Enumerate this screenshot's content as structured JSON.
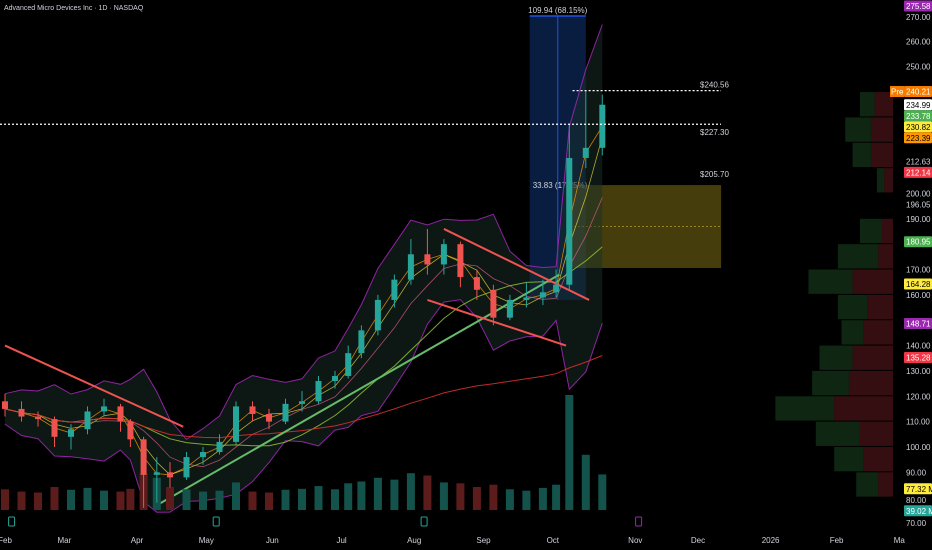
{
  "header": {
    "title": "Advanced Micro Devices Inc · 1D · NASDAQ"
  },
  "colors": {
    "up": "#26a69a",
    "down": "#ef5350",
    "background": "#000000",
    "band": "#9c27b0",
    "zone": "#9a8a1a",
    "measure": "#1e53e5"
  },
  "chart_data": {
    "type": "candlestick",
    "title": "Advanced Micro Devices Inc · 1D · NASDAQ",
    "ylim": [
      70,
      270
    ],
    "y_ticks": [
      270,
      260,
      250,
      200,
      190,
      170,
      160,
      140,
      130,
      120,
      110,
      100,
      90,
      80,
      70
    ],
    "x_ticks": [
      {
        "label": "Feb",
        "bar": 0
      },
      {
        "label": "Mar",
        "bar": 18
      },
      {
        "label": "Apr",
        "bar": 40
      },
      {
        "label": "May",
        "bar": 61
      },
      {
        "label": "Jun",
        "bar": 81
      },
      {
        "label": "Jul",
        "bar": 102
      },
      {
        "label": "Aug",
        "bar": 124
      },
      {
        "label": "Sep",
        "bar": 145
      },
      {
        "label": "Oct",
        "bar": 166
      },
      {
        "label": "Nov",
        "bar": 191
      },
      {
        "label": "Dec",
        "bar": 210
      },
      {
        "label": "2026",
        "bar": 232
      },
      {
        "label": "Feb",
        "bar": 252
      },
      {
        "label": "Ma",
        "bar": 271
      }
    ],
    "candles": [
      {
        "bar": 0,
        "o": 118,
        "h": 121,
        "l": 112,
        "c": 115,
        "v": 45
      },
      {
        "bar": 5,
        "o": 115,
        "h": 118,
        "l": 110,
        "c": 112,
        "v": 40
      },
      {
        "bar": 10,
        "o": 112,
        "h": 114,
        "l": 108,
        "c": 111,
        "v": 38
      },
      {
        "bar": 15,
        "o": 111,
        "h": 112,
        "l": 100,
        "c": 104,
        "v": 50
      },
      {
        "bar": 20,
        "o": 104,
        "h": 109,
        "l": 99,
        "c": 107,
        "v": 44
      },
      {
        "bar": 25,
        "o": 107,
        "h": 116,
        "l": 105,
        "c": 114,
        "v": 48
      },
      {
        "bar": 30,
        "o": 114,
        "h": 119,
        "l": 112,
        "c": 116,
        "v": 42
      },
      {
        "bar": 35,
        "o": 116,
        "h": 117,
        "l": 106,
        "c": 110,
        "v": 40
      },
      {
        "bar": 38,
        "o": 110,
        "h": 111,
        "l": 100,
        "c": 103,
        "v": 46
      },
      {
        "bar": 42,
        "o": 103,
        "h": 104,
        "l": 76,
        "c": 89,
        "v": 80
      },
      {
        "bar": 46,
        "o": 89,
        "h": 96,
        "l": 78,
        "c": 90,
        "v": 70
      },
      {
        "bar": 50,
        "o": 90,
        "h": 94,
        "l": 84,
        "c": 88,
        "v": 50
      },
      {
        "bar": 55,
        "o": 88,
        "h": 98,
        "l": 87,
        "c": 96,
        "v": 45
      },
      {
        "bar": 60,
        "o": 96,
        "h": 100,
        "l": 93,
        "c": 98,
        "v": 40
      },
      {
        "bar": 65,
        "o": 98,
        "h": 105,
        "l": 97,
        "c": 102,
        "v": 42
      },
      {
        "bar": 70,
        "o": 102,
        "h": 118,
        "l": 101,
        "c": 116,
        "v": 60
      },
      {
        "bar": 75,
        "o": 116,
        "h": 118,
        "l": 110,
        "c": 113,
        "v": 40
      },
      {
        "bar": 80,
        "o": 113,
        "h": 115,
        "l": 107,
        "c": 110,
        "v": 38
      },
      {
        "bar": 85,
        "o": 110,
        "h": 119,
        "l": 109,
        "c": 117,
        "v": 44
      },
      {
        "bar": 90,
        "o": 117,
        "h": 122,
        "l": 114,
        "c": 118,
        "v": 46
      },
      {
        "bar": 95,
        "o": 118,
        "h": 128,
        "l": 117,
        "c": 126,
        "v": 52
      },
      {
        "bar": 100,
        "o": 126,
        "h": 130,
        "l": 123,
        "c": 128,
        "v": 45
      },
      {
        "bar": 104,
        "o": 128,
        "h": 140,
        "l": 127,
        "c": 137,
        "v": 58
      },
      {
        "bar": 108,
        "o": 137,
        "h": 148,
        "l": 135,
        "c": 146,
        "v": 62
      },
      {
        "bar": 113,
        "o": 146,
        "h": 160,
        "l": 144,
        "c": 158,
        "v": 70
      },
      {
        "bar": 118,
        "o": 158,
        "h": 168,
        "l": 155,
        "c": 166,
        "v": 66
      },
      {
        "bar": 123,
        "o": 166,
        "h": 182,
        "l": 164,
        "c": 176,
        "v": 80
      },
      {
        "bar": 128,
        "o": 176,
        "h": 186,
        "l": 168,
        "c": 172,
        "v": 75
      },
      {
        "bar": 133,
        "o": 172,
        "h": 182,
        "l": 168,
        "c": 180,
        "v": 60
      },
      {
        "bar": 138,
        "o": 180,
        "h": 181,
        "l": 163,
        "c": 167,
        "v": 58
      },
      {
        "bar": 143,
        "o": 167,
        "h": 170,
        "l": 158,
        "c": 162,
        "v": 50
      },
      {
        "bar": 148,
        "o": 162,
        "h": 164,
        "l": 148,
        "c": 151,
        "v": 55
      },
      {
        "bar": 153,
        "o": 151,
        "h": 160,
        "l": 150,
        "c": 158,
        "v": 45
      },
      {
        "bar": 158,
        "o": 158,
        "h": 165,
        "l": 155,
        "c": 159,
        "v": 42
      },
      {
        "bar": 163,
        "o": 159,
        "h": 166,
        "l": 156,
        "c": 161,
        "v": 48
      },
      {
        "bar": 167,
        "o": 161,
        "h": 170,
        "l": 159,
        "c": 164,
        "v": 55
      },
      {
        "bar": 171,
        "o": 164,
        "h": 227,
        "l": 162,
        "c": 214,
        "v": 250
      },
      {
        "bar": 176,
        "o": 214,
        "h": 240.56,
        "l": 210,
        "c": 218,
        "v": 120
      },
      {
        "bar": 181,
        "o": 218,
        "h": 239,
        "l": 215,
        "c": 234.99,
        "v": 77.32
      }
    ],
    "trendlines": [
      {
        "color": "#ef5350",
        "from": {
          "bar": 0,
          "price": 140
        },
        "to": {
          "bar": 54,
          "price": 108
        }
      },
      {
        "color": "#66bb6a",
        "from": {
          "bar": 46,
          "price": 77
        },
        "to": {
          "bar": 168,
          "price": 168
        }
      },
      {
        "color": "#ef5350",
        "from": {
          "bar": 133,
          "price": 186
        },
        "to": {
          "bar": 177,
          "price": 158
        }
      },
      {
        "color": "#ef5350",
        "from": {
          "bar": 128,
          "price": 158
        },
        "to": {
          "bar": 170,
          "price": 140
        }
      }
    ],
    "measure": {
      "label_top": "109.94 (68.15%)",
      "label_mid": "33.83 (17.25%)",
      "from_bar": 159,
      "to_bar": 176,
      "low": 158,
      "high": 270,
      "mid_price": 203
    },
    "zone": {
      "from_bar": 170,
      "to_bar": 217,
      "low": 170.6,
      "high": 203.3
    },
    "price_lines": [
      {
        "price": 240.56,
        "label": "$240.56"
      },
      {
        "price": 227.3,
        "label": "$227.30"
      }
    ],
    "zone_label": {
      "price": 205.7,
      "label": "$205.70"
    },
    "price_tags": [
      {
        "price": 275.58,
        "label": "275.58",
        "bg": "#9c27b0",
        "fg": "#ffffff"
      },
      {
        "price": 240.21,
        "label": "240.21",
        "bg": "#f57c00",
        "fg": "#ffffff",
        "prefix": "Pre"
      },
      {
        "price": 234.99,
        "label": "234.99",
        "bg": "#ffffff",
        "fg": "#000000"
      },
      {
        "price": 233.78,
        "label": "233.78",
        "bg": "#4caf50",
        "fg": "#ffffff"
      },
      {
        "price": 230.82,
        "label": "230.82",
        "bg": "#ffeb3b",
        "fg": "#000000"
      },
      {
        "price": 223.39,
        "label": "223.39",
        "bg": "#ff9800",
        "fg": "#000000"
      },
      {
        "price": 212.63,
        "label": "212.63",
        "bg": "",
        "fg": "#d1d4dc"
      },
      {
        "price": 212.14,
        "label": "212.14",
        "bg": "#f23645",
        "fg": "#ffffff"
      },
      {
        "price": 196.05,
        "label": "196.05",
        "bg": "",
        "fg": "#d1d4dc"
      },
      {
        "price": 180.95,
        "label": "180.95",
        "bg": "#4caf50",
        "fg": "#ffffff"
      },
      {
        "price": 164.28,
        "label": "164.28",
        "bg": "#ffeb3b",
        "fg": "#000000"
      },
      {
        "price": 148.71,
        "label": "148.71",
        "bg": "#9c27b0",
        "fg": "#ffffff"
      },
      {
        "price": 135.28,
        "label": "135.28",
        "bg": "#f23645",
        "fg": "#ffffff"
      },
      {
        "price": 83.5,
        "label": "77.32 M",
        "bg": "#ffeb3b",
        "fg": "#000000"
      },
      {
        "price": 76.5,
        "label": "39.02 M",
        "bg": "#26a69a",
        "fg": "#ffffff"
      }
    ],
    "volume_profile": [
      {
        "price": 235,
        "up": 20,
        "down": 25
      },
      {
        "price": 225,
        "up": 35,
        "down": 30
      },
      {
        "price": 215,
        "up": 25,
        "down": 30
      },
      {
        "price": 205,
        "up": 10,
        "down": 12
      },
      {
        "price": 185,
        "up": 30,
        "down": 15
      },
      {
        "price": 175,
        "up": 55,
        "down": 20
      },
      {
        "price": 165,
        "up": 60,
        "down": 55
      },
      {
        "price": 155,
        "up": 40,
        "down": 35
      },
      {
        "price": 145,
        "up": 30,
        "down": 40
      },
      {
        "price": 135,
        "up": 45,
        "down": 55
      },
      {
        "price": 125,
        "up": 50,
        "down": 60
      },
      {
        "price": 115,
        "up": 80,
        "down": 80
      },
      {
        "price": 105,
        "up": 60,
        "down": 45
      },
      {
        "price": 95,
        "up": 40,
        "down": 40
      },
      {
        "price": 85,
        "up": 30,
        "down": 20
      }
    ],
    "events": [
      {
        "bar": 2,
        "type": "earnings"
      },
      {
        "bar": 64,
        "type": "earnings"
      },
      {
        "bar": 127,
        "type": "earnings"
      },
      {
        "bar": 192,
        "type": "earnings-upcoming"
      }
    ],
    "volume_unit": "M"
  }
}
